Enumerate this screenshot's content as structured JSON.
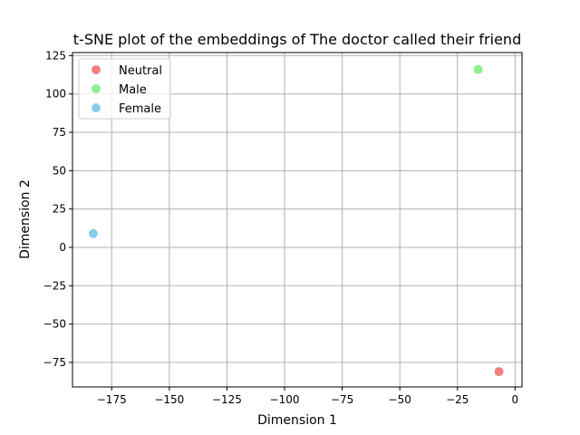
{
  "chart_data": {
    "type": "scatter",
    "title": "t-SNE plot of the embeddings of The doctor called their friend",
    "xlabel": "Dimension 1",
    "ylabel": "Dimension 2",
    "xlim": [
      -192,
      3
    ],
    "ylim": [
      -91,
      127
    ],
    "xticks": [
      -175,
      -150,
      -125,
      -100,
      -75,
      -50,
      -25,
      0
    ],
    "yticks": [
      -75,
      -50,
      -25,
      0,
      25,
      50,
      75,
      100,
      125
    ],
    "grid": true,
    "legend_position": "top-left",
    "series": [
      {
        "name": "Neutral",
        "color": "#f08080",
        "points": [
          {
            "x": -7,
            "y": -81
          }
        ]
      },
      {
        "name": "Male",
        "color": "#90ee90",
        "points": [
          {
            "x": -16,
            "y": 116
          }
        ]
      },
      {
        "name": "Female",
        "color": "#87ceeb",
        "points": [
          {
            "x": -183,
            "y": 9
          }
        ]
      }
    ]
  }
}
